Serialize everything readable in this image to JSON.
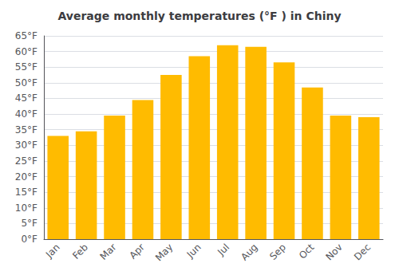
{
  "chart_data": {
    "type": "bar",
    "title": "Average monthly temperatures (°F ) in Chiny",
    "categories": [
      "Jan",
      "Feb",
      "Mar",
      "Apr",
      "May",
      "Jun",
      "Jul",
      "Aug",
      "Sep",
      "Oct",
      "Nov",
      "Dec"
    ],
    "values": [
      33,
      34.5,
      39.5,
      44.5,
      52.5,
      58.5,
      62,
      61.5,
      56.5,
      48.5,
      39.5,
      39
    ],
    "color": "#FFBB00",
    "ylim": [
      0,
      65
    ],
    "yticks": [
      {
        "value": 0,
        "label": "0°F"
      },
      {
        "value": 5,
        "label": "5°F"
      },
      {
        "value": 10,
        "label": "10°F"
      },
      {
        "value": 15,
        "label": "15°F"
      },
      {
        "value": 20,
        "label": "20°F"
      },
      {
        "value": 25,
        "label": "25°F"
      },
      {
        "value": 30,
        "label": "30°F"
      },
      {
        "value": 35,
        "label": "35°F"
      },
      {
        "value": 40,
        "label": "40°F"
      },
      {
        "value": 45,
        "label": "45°F"
      },
      {
        "value": 50,
        "label": "50°F"
      },
      {
        "value": 55,
        "label": "55°F"
      },
      {
        "value": 60,
        "label": "60°F"
      },
      {
        "value": 65,
        "label": "65°F"
      }
    ],
    "grid": true
  }
}
